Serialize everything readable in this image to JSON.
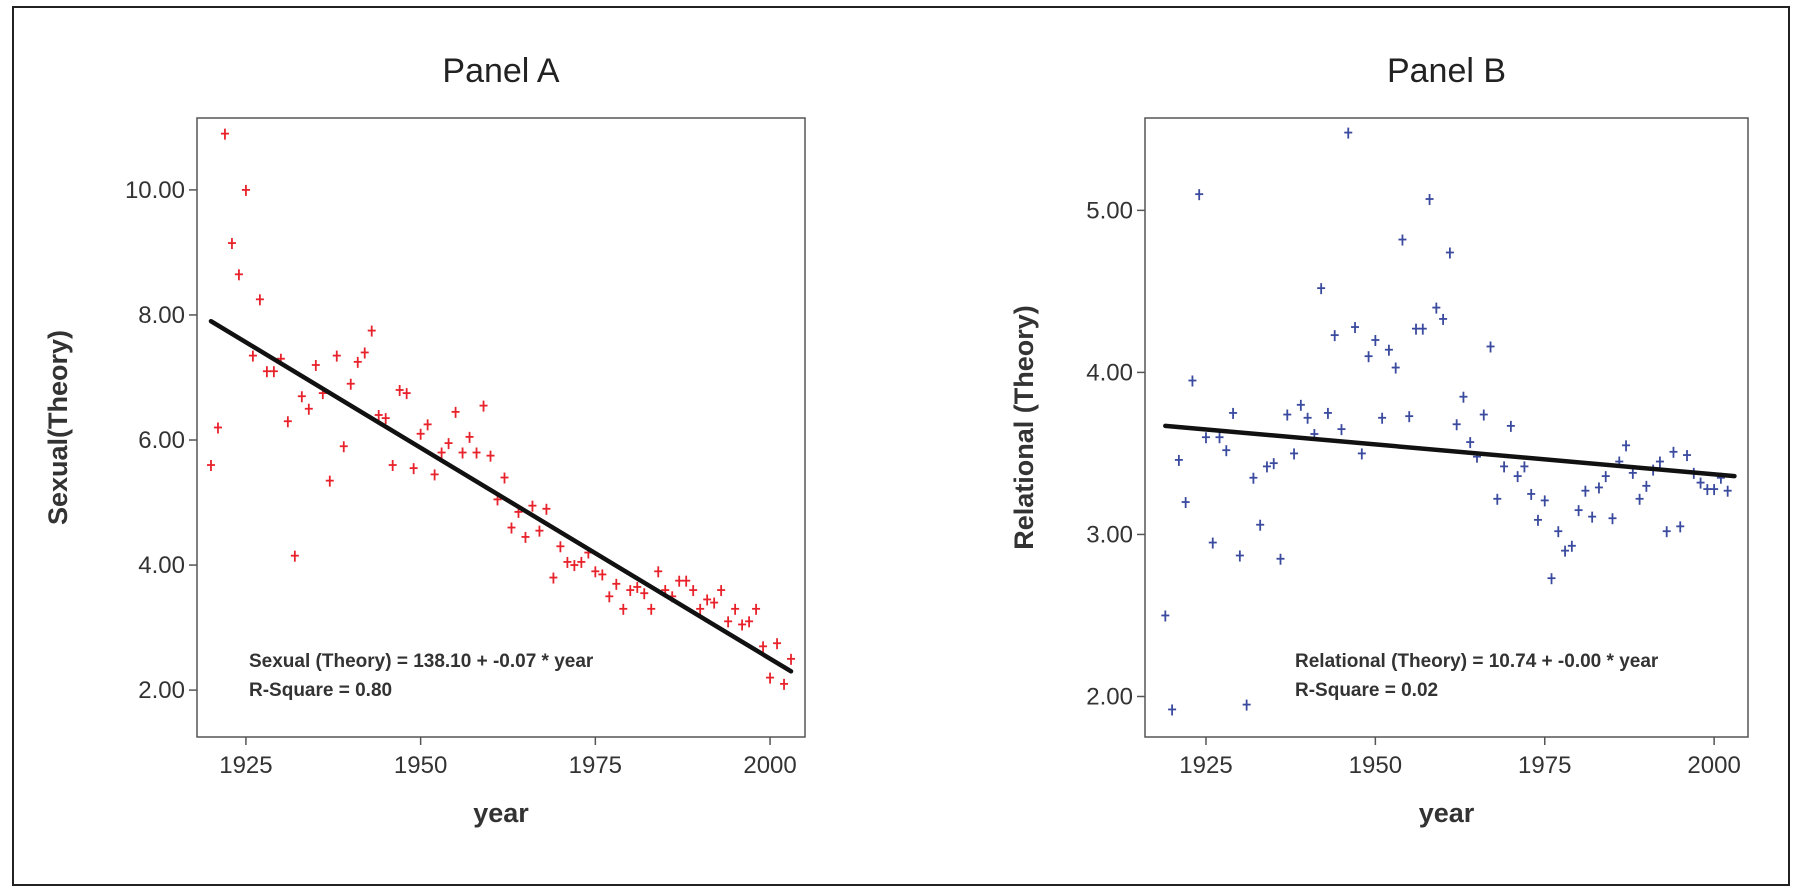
{
  "chart_data": [
    {
      "type": "scatter",
      "title": "Panel A",
      "xlabel": "year",
      "ylabel": "Sexual(Theory)",
      "xlim": [
        1918,
        2005
      ],
      "ylim": [
        1.25,
        11.15
      ],
      "xticks": [
        1925,
        1950,
        1975,
        2000
      ],
      "xtick_labels": [
        "1925",
        "1950",
        "1975",
        "2000"
      ],
      "yticks": [
        2,
        4,
        6,
        8,
        10
      ],
      "ytick_labels": [
        "2.00",
        "4.00",
        "6.00",
        "8.00",
        "10.00"
      ],
      "marker_color": "#e8222b",
      "fit_line": {
        "x": [
          1920,
          2003
        ],
        "y": [
          7.9,
          2.3
        ],
        "color": "#111111"
      },
      "annotations": [
        "Sexual (Theory) = 138.10 + -0.07 * year",
        "R-Square = 0.80"
      ],
      "x": [
        1920,
        1921,
        1922,
        1923,
        1924,
        1925,
        1926,
        1927,
        1928,
        1929,
        1930,
        1931,
        1932,
        1933,
        1934,
        1935,
        1936,
        1937,
        1938,
        1939,
        1940,
        1941,
        1942,
        1943,
        1944,
        1945,
        1946,
        1947,
        1948,
        1949,
        1950,
        1951,
        1952,
        1953,
        1954,
        1955,
        1956,
        1957,
        1958,
        1959,
        1960,
        1961,
        1962,
        1963,
        1964,
        1965,
        1966,
        1967,
        1968,
        1969,
        1970,
        1971,
        1972,
        1973,
        1974,
        1975,
        1976,
        1977,
        1978,
        1979,
        1980,
        1981,
        1982,
        1983,
        1984,
        1985,
        1986,
        1987,
        1988,
        1989,
        1990,
        1991,
        1992,
        1993,
        1994,
        1995,
        1996,
        1997,
        1998,
        1999,
        2000,
        2001,
        2002,
        2003
      ],
      "y": [
        5.6,
        6.2,
        10.9,
        9.15,
        8.65,
        10.0,
        7.35,
        8.25,
        7.1,
        7.1,
        7.3,
        6.3,
        4.15,
        6.7,
        6.5,
        7.2,
        6.75,
        5.35,
        7.35,
        5.9,
        6.9,
        7.25,
        7.4,
        7.75,
        6.4,
        6.35,
        5.6,
        6.8,
        6.75,
        5.55,
        6.1,
        6.25,
        5.45,
        5.8,
        5.95,
        6.45,
        5.8,
        6.05,
        5.8,
        6.55,
        5.75,
        5.05,
        5.4,
        4.6,
        4.85,
        4.45,
        4.95,
        4.55,
        4.9,
        3.8,
        4.3,
        4.05,
        4.0,
        4.05,
        4.2,
        3.9,
        3.85,
        3.5,
        3.7,
        3.3,
        3.6,
        3.65,
        3.55,
        3.3,
        3.9,
        3.6,
        3.5,
        3.75,
        3.75,
        3.6,
        3.3,
        3.45,
        3.4,
        3.6,
        3.1,
        3.3,
        3.05,
        3.1,
        3.3,
        2.7,
        2.2,
        2.75,
        2.1,
        2.5
      ]
    },
    {
      "type": "scatter",
      "title": "Panel B",
      "xlabel": "year",
      "ylabel": "Relational (Theory)",
      "xlim": [
        1916,
        2005
      ],
      "ylim": [
        1.75,
        5.57
      ],
      "xticks": [
        1925,
        1950,
        1975,
        2000
      ],
      "xtick_labels": [
        "1925",
        "1950",
        "1975",
        "2000"
      ],
      "yticks": [
        2,
        3,
        4,
        5
      ],
      "ytick_labels": [
        "2.00",
        "3.00",
        "4.00",
        "5.00"
      ],
      "marker_color": "#3a4a9e",
      "fit_line": {
        "x": [
          1919,
          2003
        ],
        "y": [
          3.67,
          3.36
        ],
        "color": "#111111"
      },
      "annotations": [
        "Relational (Theory) = 10.74 + -0.00 * year",
        "R-Square = 0.02"
      ],
      "x": [
        1919,
        1920,
        1921,
        1922,
        1923,
        1924,
        1925,
        1926,
        1927,
        1928,
        1929,
        1930,
        1931,
        1932,
        1933,
        1934,
        1935,
        1936,
        1937,
        1938,
        1939,
        1940,
        1941,
        1942,
        1943,
        1944,
        1945,
        1946,
        1947,
        1948,
        1949,
        1950,
        1951,
        1952,
        1953,
        1954,
        1955,
        1956,
        1957,
        1958,
        1959,
        1960,
        1961,
        1962,
        1963,
        1964,
        1965,
        1966,
        1967,
        1968,
        1969,
        1970,
        1971,
        1972,
        1973,
        1974,
        1975,
        1976,
        1977,
        1978,
        1979,
        1980,
        1981,
        1982,
        1983,
        1984,
        1985,
        1986,
        1987,
        1988,
        1989,
        1990,
        1991,
        1992,
        1993,
        1994,
        1995,
        1996,
        1997,
        1998,
        1999,
        2000,
        2001,
        2002
      ],
      "y": [
        2.5,
        1.92,
        3.46,
        3.2,
        3.95,
        5.1,
        3.6,
        2.95,
        3.6,
        3.52,
        3.75,
        2.87,
        1.95,
        3.35,
        3.06,
        3.42,
        3.44,
        2.85,
        3.74,
        3.5,
        3.8,
        3.72,
        3.62,
        4.52,
        3.75,
        4.23,
        3.65,
        5.48,
        4.28,
        3.5,
        4.1,
        4.2,
        3.72,
        4.14,
        4.03,
        4.82,
        3.73,
        4.27,
        4.27,
        5.07,
        4.4,
        4.33,
        4.74,
        3.68,
        3.85,
        3.57,
        3.48,
        3.74,
        4.16,
        3.22,
        3.42,
        3.67,
        3.36,
        3.42,
        3.25,
        3.09,
        3.21,
        2.73,
        3.02,
        2.9,
        2.93,
        3.15,
        3.27,
        3.11,
        3.29,
        3.36,
        3.1,
        3.45,
        3.55,
        3.38,
        3.22,
        3.3,
        3.4,
        3.45,
        3.02,
        3.51,
        3.05,
        3.49,
        3.38,
        3.32,
        3.28,
        3.28,
        3.35,
        3.27
      ]
    }
  ]
}
